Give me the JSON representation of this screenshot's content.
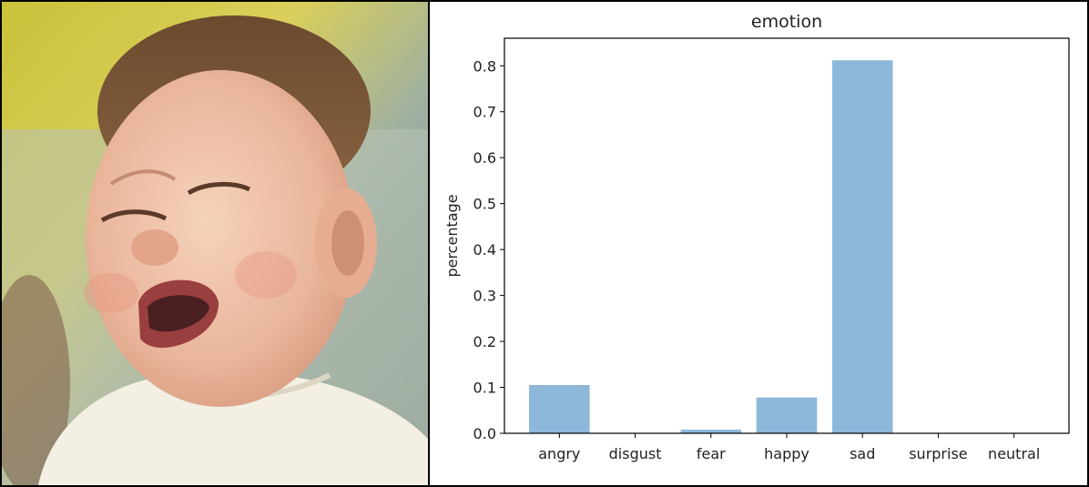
{
  "photo": {
    "subject": "crying-baby-photo"
  },
  "colors": {
    "bar": "#8db8da",
    "axis": "#000000"
  },
  "chart_data": {
    "type": "bar",
    "title": "emotion",
    "xlabel": "",
    "ylabel": "percentage",
    "categories": [
      "angry",
      "disgust",
      "fear",
      "happy",
      "sad",
      "surprise",
      "neutral"
    ],
    "values": [
      0.105,
      0.0,
      0.008,
      0.078,
      0.812,
      0.0,
      0.0
    ],
    "ylim": [
      0,
      0.86
    ],
    "yticks": [
      "0.0",
      "0.1",
      "0.2",
      "0.3",
      "0.4",
      "0.5",
      "0.6",
      "0.7",
      "0.8"
    ],
    "grid": false,
    "legend": "none"
  }
}
